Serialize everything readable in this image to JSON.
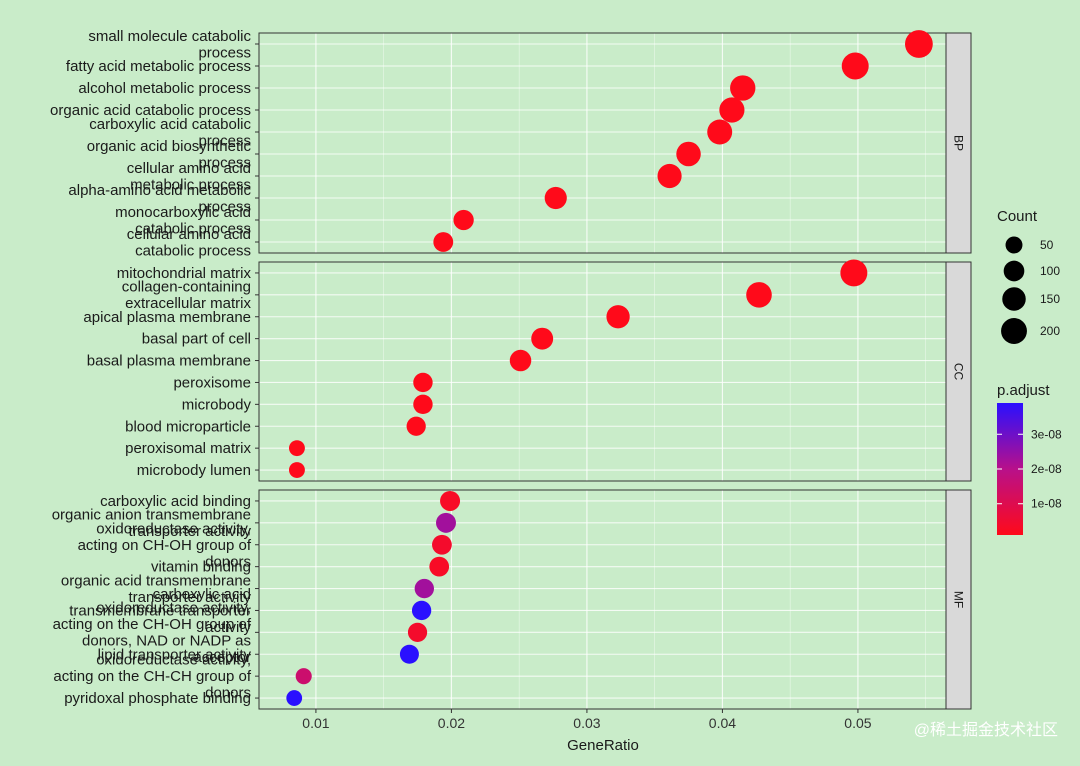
{
  "chart_data": {
    "type": "scatter",
    "xlabel": "GeneRatio",
    "ylabel": "",
    "xlim": [
      0.0058,
      0.0565
    ],
    "x_ticks": [
      {
        "value": 0.01,
        "label": "0.01"
      },
      {
        "value": 0.02,
        "label": "0.02"
      },
      {
        "value": 0.03,
        "label": "0.03"
      },
      {
        "value": 0.04,
        "label": "0.04"
      },
      {
        "value": 0.05,
        "label": "0.05"
      }
    ],
    "grid": true,
    "facets": [
      {
        "name": "BP",
        "points": [
          {
            "label": "small molecule catabolic\nprocess",
            "x": 0.0545,
            "count": 245,
            "p_adjust": 1e-09
          },
          {
            "label": "fatty acid metabolic process",
            "x": 0.0498,
            "count": 225,
            "p_adjust": 1e-09
          },
          {
            "label": "alcohol metabolic process",
            "x": 0.0415,
            "count": 188,
            "p_adjust": 1e-09
          },
          {
            "label": "organic acid catabolic process",
            "x": 0.0407,
            "count": 184,
            "p_adjust": 1e-09
          },
          {
            "label": "carboxylic acid catabolic\nprocess",
            "x": 0.0398,
            "count": 180,
            "p_adjust": 1e-09
          },
          {
            "label": "organic acid biosynthetic\nprocess",
            "x": 0.0375,
            "count": 170,
            "p_adjust": 1e-09
          },
          {
            "label": "cellular amino acid\nmetabolic process",
            "x": 0.0361,
            "count": 163,
            "p_adjust": 1e-09
          },
          {
            "label": "alpha-amino acid metabolic\nprocess",
            "x": 0.0277,
            "count": 125,
            "p_adjust": 1e-09
          },
          {
            "label": "monocarboxylic acid\ncatabolic process",
            "x": 0.0209,
            "count": 95,
            "p_adjust": 1e-09
          },
          {
            "label": "cellular amino acid\ncatabolic process",
            "x": 0.0194,
            "count": 88,
            "p_adjust": 1e-09
          }
        ]
      },
      {
        "name": "CC",
        "points": [
          {
            "label": "mitochondrial matrix",
            "x": 0.0497,
            "count": 225,
            "p_adjust": 1e-09
          },
          {
            "label": "collagen-containing\nextracellular matrix",
            "x": 0.0427,
            "count": 193,
            "p_adjust": 1e-09
          },
          {
            "label": "apical plasma membrane",
            "x": 0.0323,
            "count": 146,
            "p_adjust": 1e-09
          },
          {
            "label": "basal part of cell",
            "x": 0.0267,
            "count": 121,
            "p_adjust": 1e-09
          },
          {
            "label": "basal plasma membrane",
            "x": 0.0251,
            "count": 114,
            "p_adjust": 1e-09
          },
          {
            "label": "peroxisome",
            "x": 0.0179,
            "count": 81,
            "p_adjust": 1e-09
          },
          {
            "label": "microbody",
            "x": 0.0179,
            "count": 81,
            "p_adjust": 1e-09
          },
          {
            "label": "blood microparticle",
            "x": 0.0174,
            "count": 79,
            "p_adjust": 1e-09
          },
          {
            "label": "peroxisomal matrix",
            "x": 0.0086,
            "count": 39,
            "p_adjust": 1e-09
          },
          {
            "label": "microbody lumen",
            "x": 0.0086,
            "count": 39,
            "p_adjust": 1e-09
          }
        ]
      },
      {
        "name": "MF",
        "points": [
          {
            "label": "carboxylic acid binding",
            "x": 0.0199,
            "count": 90,
            "p_adjust": 3e-09
          },
          {
            "label": "organic anion transmembrane\ntransporter activity",
            "x": 0.0196,
            "count": 89,
            "p_adjust": 2.3e-08
          },
          {
            "label": "oxidoreductase activity,\nacting on CH-OH group of\ndonors",
            "x": 0.0193,
            "count": 87,
            "p_adjust": 4e-09
          },
          {
            "label": "vitamin binding",
            "x": 0.0191,
            "count": 86,
            "p_adjust": 3e-09
          },
          {
            "label": "organic acid transmembrane\ntransporter activity",
            "x": 0.018,
            "count": 81,
            "p_adjust": 2.3e-08
          },
          {
            "label": "carboxylic acid\ntransmembrane transporter\nactivity",
            "x": 0.0178,
            "count": 80,
            "p_adjust": 3.9e-08
          },
          {
            "label": "oxidoreductase activity,\nacting on the CH-OH group of\ndonors, NAD or NADP as\nacceptor",
            "x": 0.0175,
            "count": 79,
            "p_adjust": 4e-09
          },
          {
            "label": "lipid transporter activity",
            "x": 0.0169,
            "count": 76,
            "p_adjust": 3.9e-08
          },
          {
            "label": "oxidoreductase activity,\nacting on the CH-CH group of\ndonors",
            "x": 0.0091,
            "count": 41,
            "p_adjust": 1.5e-08
          },
          {
            "label": "pyridoxal phosphate binding",
            "x": 0.0084,
            "count": 38,
            "p_adjust": 3.9e-08
          }
        ]
      }
    ],
    "legend_position": "right",
    "size_legend": {
      "title": "Count",
      "values": [
        50,
        100,
        150,
        200
      ]
    },
    "color_legend": {
      "title": "p.adjust",
      "range": [
        1e-09,
        3.9e-08
      ],
      "ticks": [
        {
          "value": 1e-08,
          "label": "1e-08"
        },
        {
          "value": 2e-08,
          "label": "2e-08"
        },
        {
          "value": 3e-08,
          "label": "3e-08"
        }
      ],
      "low_color": "#ff0a1a",
      "high_color": "#2a10ff"
    }
  },
  "watermark": "@稀土掘金技术社区",
  "colors": {
    "background": "#c9ecc9",
    "strip": "#d9d9d9",
    "border": "#333333"
  }
}
